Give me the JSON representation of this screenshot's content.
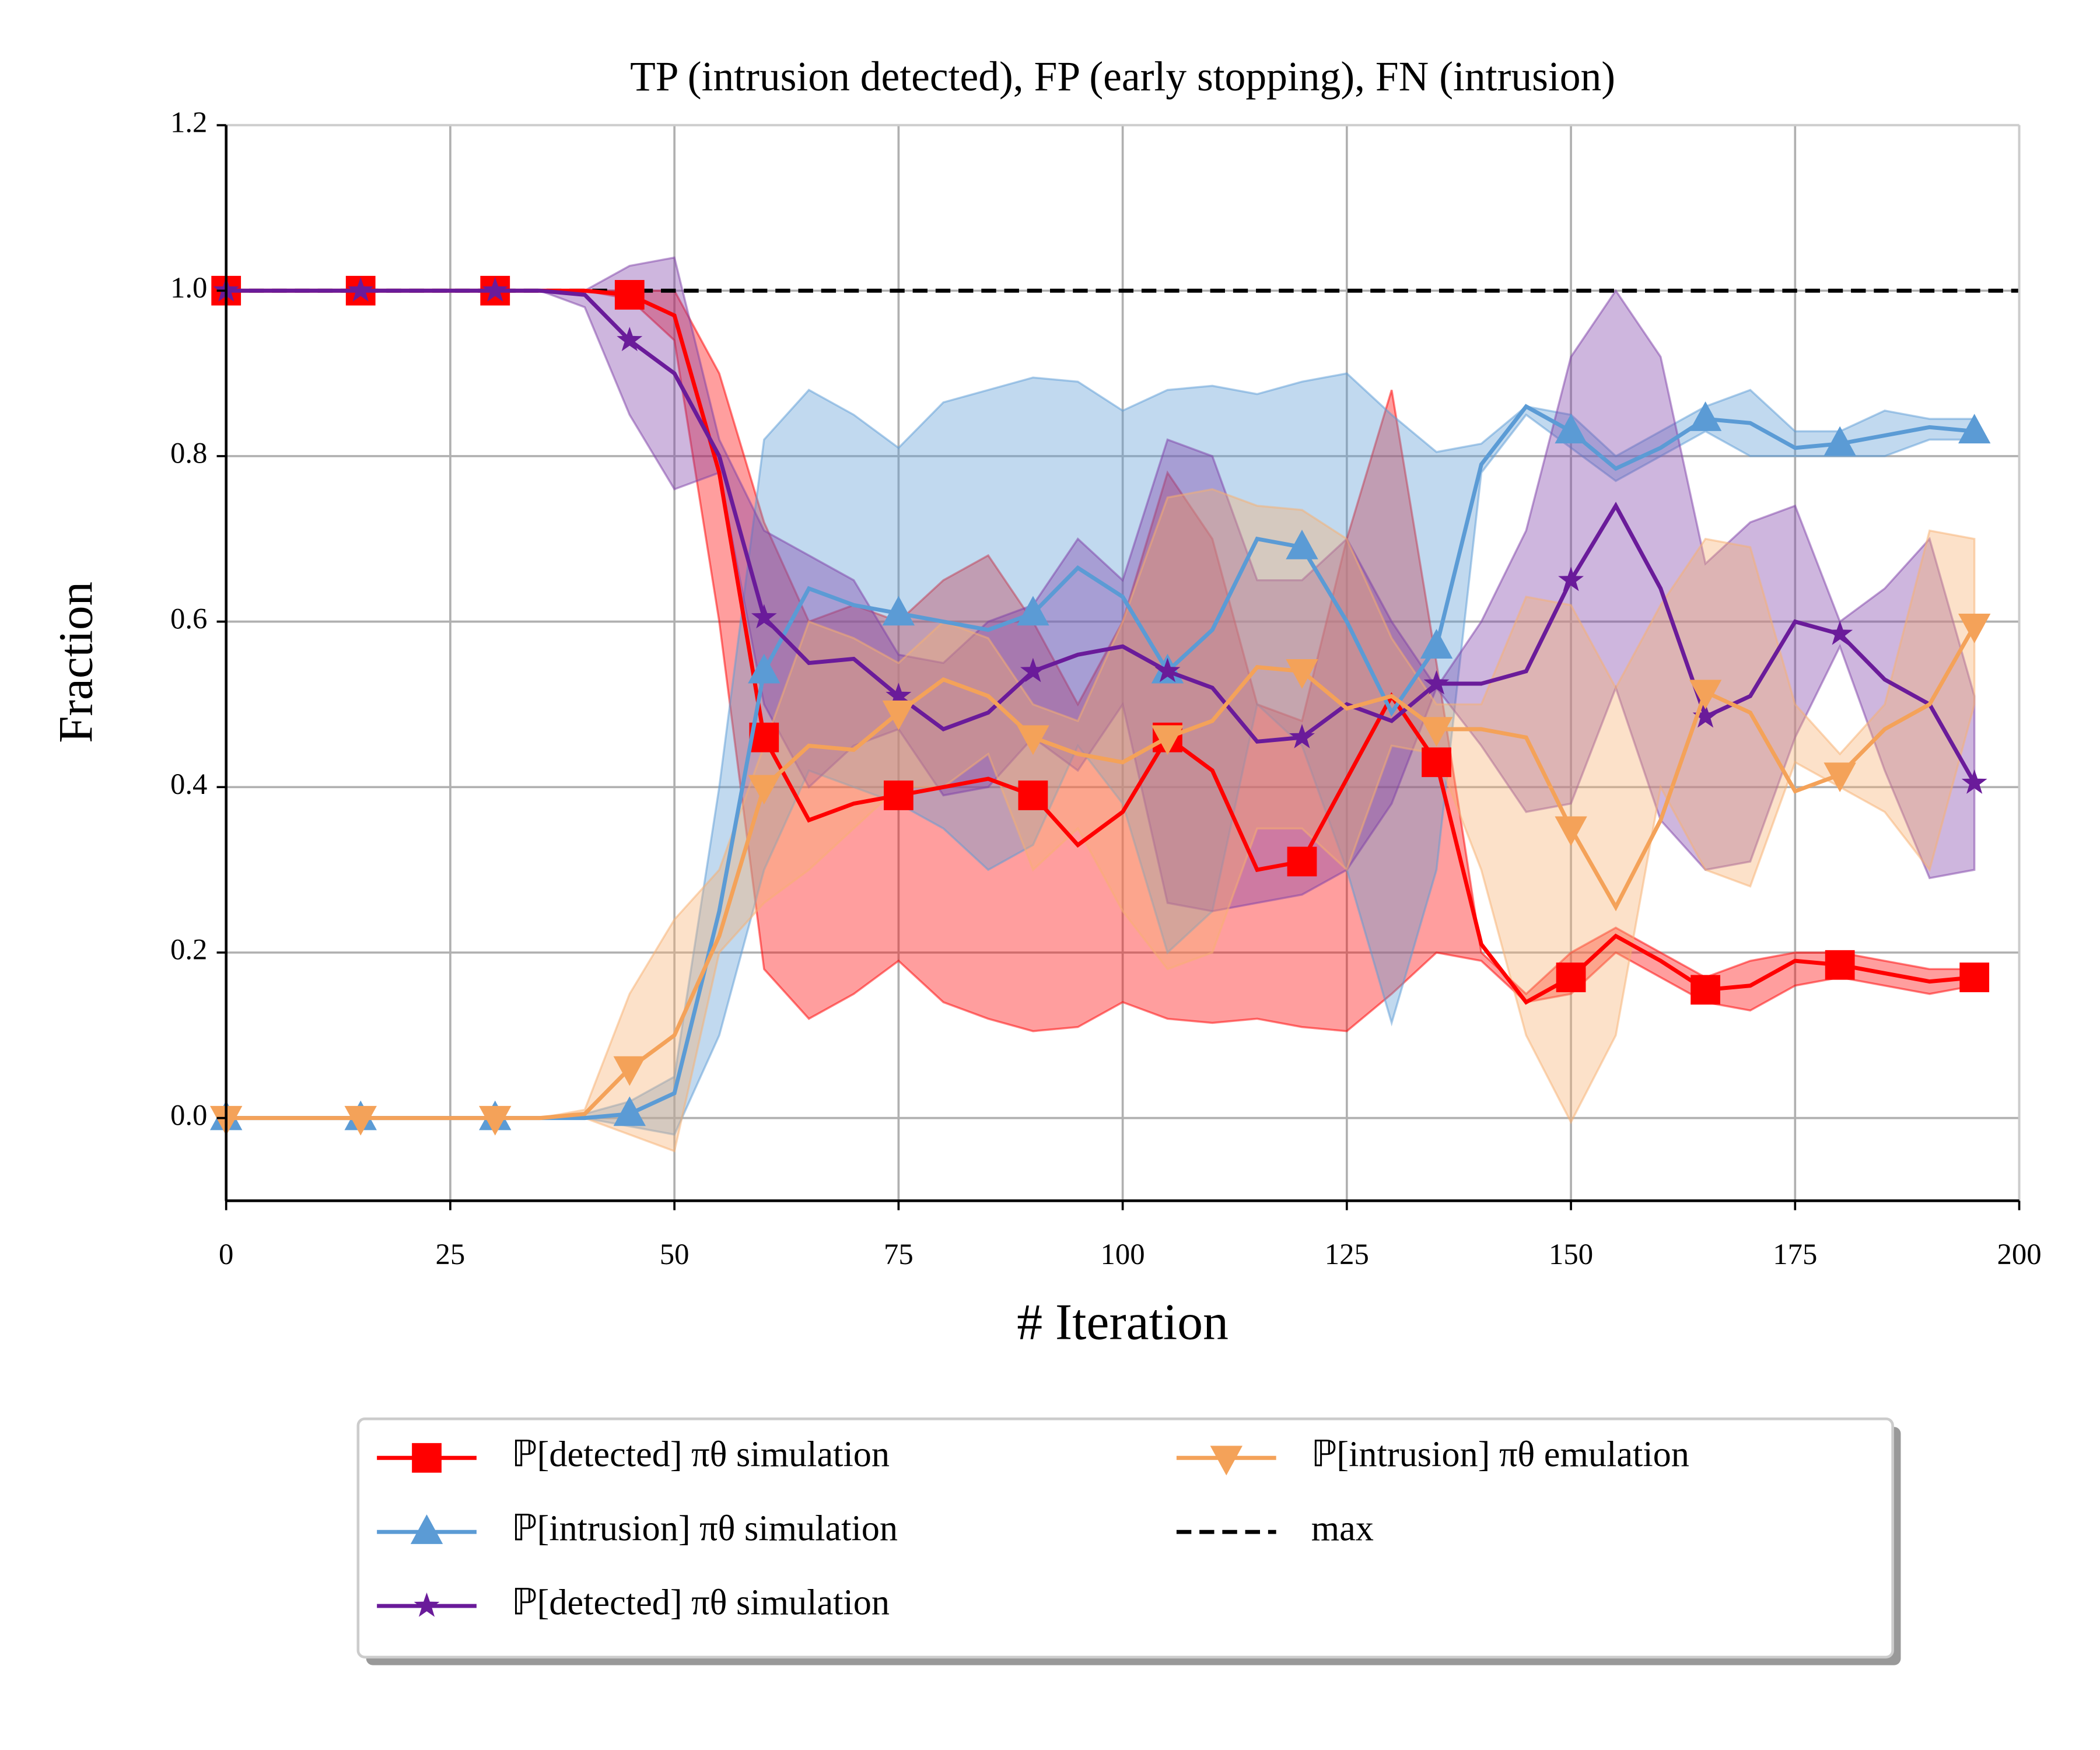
{
  "chart_data": {
    "type": "line",
    "title": "TP (intrusion detected), FP (early stopping), FN (intrusion)",
    "xlabel": "# Iteration",
    "ylabel": "Fraction",
    "x": [
      0,
      5,
      10,
      15,
      20,
      25,
      30,
      35,
      40,
      45,
      50,
      55,
      60,
      65,
      70,
      75,
      80,
      85,
      90,
      95,
      100,
      105,
      110,
      115,
      120,
      125,
      130,
      135,
      140,
      145,
      150,
      155,
      160,
      165,
      170,
      175,
      180,
      185,
      190,
      195
    ],
    "xlim": [
      0,
      200
    ],
    "xticks": [
      0,
      25,
      50,
      75,
      100,
      125,
      150,
      175,
      200
    ],
    "ylim": [
      -0.1,
      1.2
    ],
    "yticks": [
      {
        "value": 0,
        "label": "0.0"
      },
      0.2,
      0.4,
      0.6,
      0.8,
      {
        "value": 1,
        "label": "1.0"
      },
      1.2
    ],
    "grid": true,
    "marker_every": 3,
    "legend": "lower center",
    "series": [
      {
        "name": "ℙ[detected] πθ simulation",
        "color": "#ff0000",
        "band_color": "#ff0000",
        "marker": "square",
        "values": [
          1,
          1,
          1,
          1,
          1,
          1,
          1,
          1,
          1,
          0.995,
          0.97,
          0.78,
          0.46,
          0.36,
          0.38,
          0.39,
          0.4,
          0.41,
          0.39,
          0.33,
          0.37,
          0.46,
          0.42,
          0.3,
          0.31,
          0.41,
          0.51,
          0.43,
          0.21,
          0.14,
          0.17,
          0.22,
          0.19,
          0.155,
          0.16,
          0.19,
          0.185,
          0.175,
          0.165,
          0.17
        ],
        "upper": [
          1,
          1,
          1,
          1,
          1,
          1,
          1,
          1,
          1,
          1,
          1,
          0.9,
          0.72,
          0.6,
          0.62,
          0.6,
          0.65,
          0.68,
          0.6,
          0.5,
          0.6,
          0.78,
          0.7,
          0.5,
          0.48,
          0.7,
          0.88,
          0.55,
          0.2,
          0.15,
          0.2,
          0.23,
          0.2,
          0.17,
          0.19,
          0.2,
          0.2,
          0.19,
          0.18,
          0.18
        ],
        "lower": [
          1,
          1,
          1,
          1,
          1,
          1,
          1,
          1,
          1,
          0.99,
          0.94,
          0.6,
          0.18,
          0.12,
          0.15,
          0.19,
          0.14,
          0.12,
          0.105,
          0.11,
          0.14,
          0.12,
          0.115,
          0.12,
          0.11,
          0.105,
          0.15,
          0.2,
          0.19,
          0.14,
          0.15,
          0.2,
          0.17,
          0.14,
          0.13,
          0.16,
          0.17,
          0.16,
          0.15,
          0.16
        ]
      },
      {
        "name": "ℙ[intrusion] πθ simulation",
        "color": "#5b9bd5",
        "band_color": "#5b9bd5",
        "marker": "triangle-up",
        "values": [
          0,
          0,
          0,
          0,
          0,
          0,
          0,
          0,
          0,
          0.005,
          0.03,
          0.25,
          0.54,
          0.64,
          0.62,
          0.61,
          0.6,
          0.59,
          0.61,
          0.665,
          0.63,
          0.54,
          0.59,
          0.7,
          0.69,
          0.6,
          0.49,
          0.57,
          0.79,
          0.86,
          0.83,
          0.785,
          0.81,
          0.845,
          0.84,
          0.81,
          0.815,
          0.825,
          0.835,
          0.83
        ],
        "upper": [
          0,
          0,
          0,
          0,
          0,
          0,
          0,
          0,
          0.005,
          0.02,
          0.05,
          0.4,
          0.82,
          0.88,
          0.85,
          0.81,
          0.865,
          0.88,
          0.895,
          0.89,
          0.855,
          0.88,
          0.885,
          0.875,
          0.89,
          0.9,
          0.85,
          0.805,
          0.815,
          0.86,
          0.85,
          0.8,
          0.83,
          0.86,
          0.88,
          0.83,
          0.83,
          0.855,
          0.845,
          0.845
        ],
        "lower": [
          0,
          0,
          0,
          0,
          0,
          0,
          0,
          0,
          0,
          -0.01,
          -0.02,
          0.1,
          0.3,
          0.42,
          0.4,
          0.38,
          0.35,
          0.3,
          0.33,
          0.45,
          0.38,
          0.2,
          0.25,
          0.5,
          0.45,
          0.3,
          0.115,
          0.3,
          0.78,
          0.85,
          0.81,
          0.77,
          0.8,
          0.83,
          0.8,
          0.8,
          0.8,
          0.8,
          0.82,
          0.82
        ]
      },
      {
        "name": "ℙ[detected] πθ simulation",
        "color": "#6a1b9a",
        "band_color": "#7e3fa8",
        "marker": "star",
        "values": [
          1,
          1,
          1,
          1,
          1,
          1,
          1,
          1,
          0.995,
          0.94,
          0.9,
          0.8,
          0.605,
          0.55,
          0.555,
          0.51,
          0.47,
          0.49,
          0.54,
          0.56,
          0.57,
          0.54,
          0.52,
          0.455,
          0.46,
          0.5,
          0.48,
          0.525,
          0.525,
          0.54,
          0.65,
          0.74,
          0.64,
          0.485,
          0.51,
          0.6,
          0.585,
          0.53,
          0.5,
          0.405
        ],
        "upper": [
          1,
          1,
          1,
          1,
          1,
          1,
          1,
          1,
          1,
          1.03,
          1.04,
          0.82,
          0.71,
          0.68,
          0.65,
          0.56,
          0.55,
          0.6,
          0.62,
          0.7,
          0.65,
          0.82,
          0.8,
          0.65,
          0.65,
          0.7,
          0.6,
          0.52,
          0.6,
          0.71,
          0.92,
          1,
          0.92,
          0.67,
          0.72,
          0.74,
          0.6,
          0.64,
          0.7,
          0.51
        ],
        "lower": [
          1,
          1,
          1,
          1,
          1,
          1,
          1,
          1,
          0.98,
          0.85,
          0.76,
          0.78,
          0.5,
          0.4,
          0.45,
          0.47,
          0.39,
          0.4,
          0.46,
          0.42,
          0.5,
          0.26,
          0.25,
          0.26,
          0.27,
          0.3,
          0.38,
          0.52,
          0.45,
          0.37,
          0.38,
          0.52,
          0.36,
          0.3,
          0.31,
          0.46,
          0.57,
          0.42,
          0.29,
          0.3
        ]
      },
      {
        "name": "ℙ[intrusion] πθ emulation",
        "color": "#f4a259",
        "band_color": "#f8b070",
        "marker": "triangle-down",
        "values": [
          0,
          0,
          0,
          0,
          0,
          0,
          0,
          0,
          0.005,
          0.06,
          0.1,
          0.22,
          0.4,
          0.45,
          0.445,
          0.49,
          0.53,
          0.51,
          0.46,
          0.44,
          0.43,
          0.46,
          0.48,
          0.545,
          0.54,
          0.495,
          0.51,
          0.47,
          0.47,
          0.46,
          0.35,
          0.255,
          0.36,
          0.515,
          0.49,
          0.395,
          0.415,
          0.47,
          0.5,
          0.595
        ],
        "upper": [
          0,
          0,
          0,
          0,
          0,
          0,
          0,
          0,
          0.01,
          0.15,
          0.24,
          0.3,
          0.45,
          0.6,
          0.58,
          0.55,
          0.6,
          0.58,
          0.5,
          0.48,
          0.6,
          0.75,
          0.76,
          0.74,
          0.735,
          0.7,
          0.58,
          0.5,
          0.5,
          0.63,
          0.62,
          0.52,
          0.62,
          0.7,
          0.69,
          0.5,
          0.44,
          0.5,
          0.71,
          0.7
        ],
        "lower": [
          0,
          0,
          0,
          0,
          0,
          0,
          0,
          0,
          0,
          -0.02,
          -0.04,
          0.2,
          0.26,
          0.3,
          0.35,
          0.4,
          0.4,
          0.44,
          0.3,
          0.35,
          0.25,
          0.18,
          0.2,
          0.35,
          0.35,
          0.3,
          0.45,
          0.44,
          0.3,
          0.1,
          -0.005,
          0.1,
          0.4,
          0.3,
          0.28,
          0.43,
          0.4,
          0.37,
          0.3,
          0.5
        ]
      }
    ],
    "reference_lines": [
      {
        "name": "max",
        "value": 1,
        "color": "#000000",
        "dashed": true
      }
    ]
  }
}
